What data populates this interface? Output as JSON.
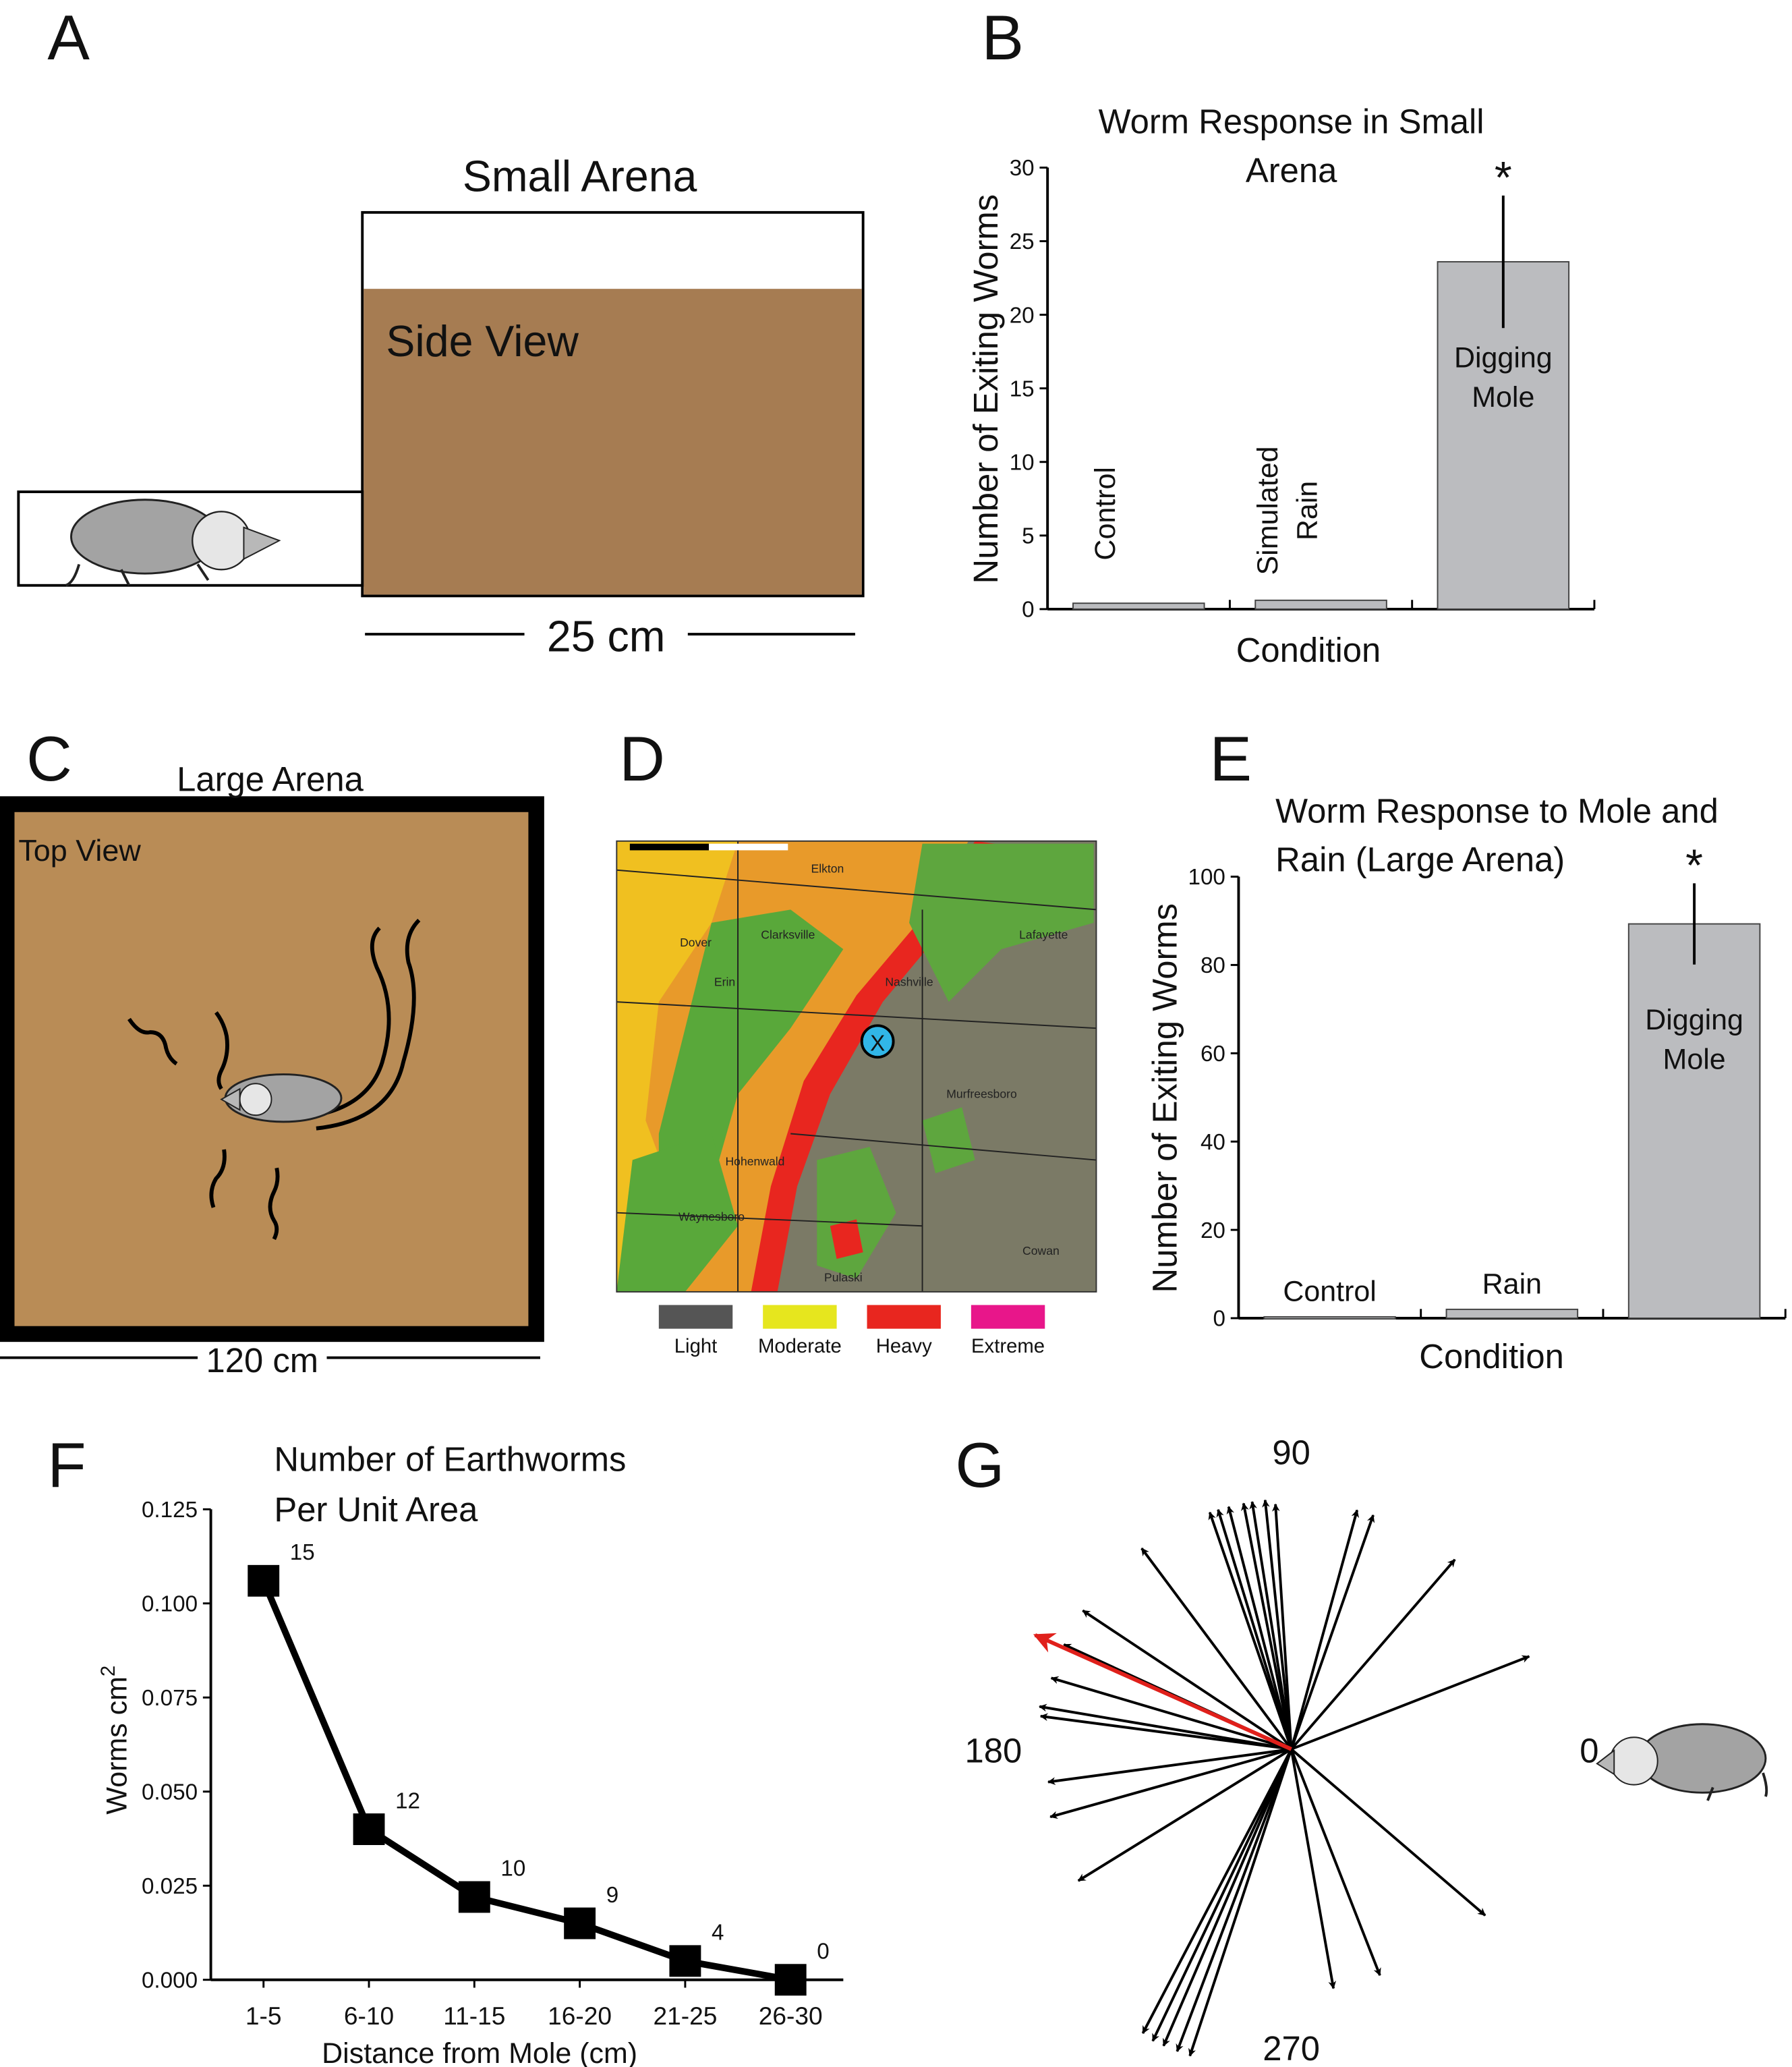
{
  "panel_labels": [
    "A",
    "B",
    "C",
    "D",
    "E",
    "F",
    "G"
  ],
  "panel_a": {
    "title": "Small Arena",
    "view": "Side View",
    "scale": "25 cm"
  },
  "panel_c": {
    "title": "Large Arena",
    "view": "Top View",
    "scale": "120 cm"
  },
  "panel_d": {
    "marker": "X",
    "places": [
      "Elkton",
      "Clarksville",
      "Dover",
      "Erin",
      "Nashville",
      "Lafayette",
      "Murfreesboro",
      "Hohenwald",
      "Waynesboro",
      "Pulaski",
      "Cowan"
    ],
    "legend": [
      {
        "name": "Light",
        "color": "#555555"
      },
      {
        "name": "Moderate",
        "color": "#e6e61e"
      },
      {
        "name": "Heavy",
        "color": "#e8261f"
      },
      {
        "name": "Extreme",
        "color": "#e8168a"
      }
    ]
  },
  "chart_data": [
    {
      "type": "bar",
      "title": "Worm Response in Small Arena",
      "categories": [
        "Control",
        "Simulated Rain",
        "Digging Mole"
      ],
      "values": [
        0.4,
        0.6,
        23.6
      ],
      "errors": [
        null,
        null,
        4.5
      ],
      "significance": [
        null,
        null,
        "*"
      ],
      "ylabel": "Number of Exiting Worms",
      "xlabel": "Condition",
      "ylim": [
        0,
        30
      ],
      "yticks": [
        0,
        5,
        10,
        15,
        20,
        25,
        30
      ],
      "color": "#bbbcbf",
      "rotated_labels": true
    },
    {
      "type": "bar",
      "title": "Worm Response to Mole and Rain (Large Arena)",
      "categories": [
        "Control",
        "Rain",
        "Digging Mole"
      ],
      "values": [
        0.3,
        2,
        89.3
      ],
      "errors": [
        null,
        null,
        9.2
      ],
      "significance": [
        null,
        null,
        "*"
      ],
      "ylabel": "Number of Exiting Worms",
      "xlabel": "Condition",
      "ylim": [
        0,
        100
      ],
      "yticks": [
        0,
        20,
        40,
        60,
        80,
        100
      ],
      "color": "#bbbcbf",
      "rotated_labels": false
    },
    {
      "type": "line",
      "title": "Number of Earthworms Per Unit Area",
      "categories": [
        "1-5",
        "6-10",
        "11-15",
        "16-20",
        "21-25",
        "26-30"
      ],
      "values": [
        0.106,
        0.04,
        0.022,
        0.015,
        0.005,
        0.0
      ],
      "point_counts": [
        15,
        12,
        10,
        9,
        4,
        0
      ],
      "ylabel": "Worms cm",
      "ylabel_superscript": "2",
      "xlabel": "Distance from Mole (cm)",
      "ylim": [
        0,
        0.125
      ],
      "yticks": [
        {
          "value": 0,
          "label": "0.000"
        },
        {
          "value": 0.025,
          "label": "0.025"
        },
        {
          "value": 0.05,
          "label": "0.050"
        },
        {
          "value": 0.075,
          "label": "0.075"
        },
        {
          "value": 0.1,
          "label": "0.100"
        },
        {
          "value": 0.125,
          "label": "0.125"
        }
      ],
      "color": "#000000"
    },
    {
      "type": "arrows",
      "angles": [
        109,
        107,
        104.5,
        101,
        99,
        96,
        93.7,
        74.6,
        70.7,
        49.2,
        21.3,
        126.7,
        146.4,
        155.3,
        163.5,
        170.4,
        172.5,
        187.7,
        195.7,
        211.7,
        242.4,
        244.6,
        246.7,
        249.3,
        251.7,
        280,
        291.4,
        319.4
      ],
      "lengths": [
        1,
        1,
        1,
        1,
        1,
        1,
        0.98,
        0.99,
        0.99,
        1,
        1.02,
        1,
        1,
        1,
        1,
        1.02,
        1.01,
        0.98,
        1,
        1,
        1.28,
        1.29,
        1.29,
        1.29,
        1.29,
        0.97,
        0.97,
        1.02
      ],
      "color": "#000000",
      "mean_angle": 156,
      "mean_length": 1.12,
      "mean_color": "#e0201b",
      "angle_ticks": [
        0,
        90,
        180,
        270
      ]
    }
  ]
}
